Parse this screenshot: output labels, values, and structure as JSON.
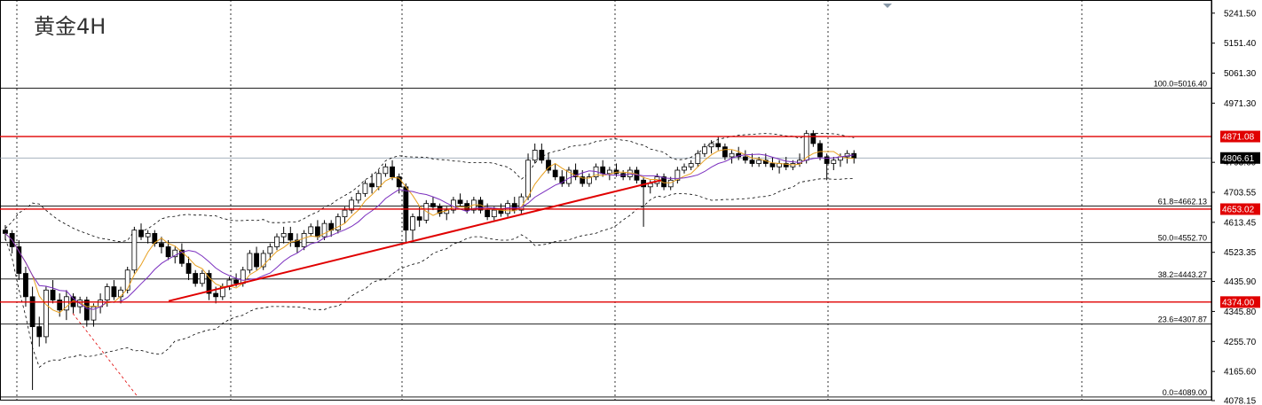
{
  "title": "黄金4H",
  "colors": {
    "background": "#ffffff",
    "bull_candle": "#ffffff",
    "bear_candle": "#000000",
    "candle_outline": "#000000",
    "grid": "#000000",
    "level_line": "#e00000",
    "trendline": "#e00000",
    "ma_fast": "#e8a020",
    "ma_slow": "#7b2fbf",
    "bands": "#000000",
    "price_tag_bg": "#000000",
    "price_tag_text": "#ffffff"
  },
  "chart_data": {
    "type": "candlestick",
    "instrument": "黄金",
    "timeframe": "4H",
    "ylim": [
      4078.15,
      5281.0
    ],
    "y_ticks": [
      "5241.50",
      "5151.40",
      "5061.30",
      "4971.30",
      "4793.60",
      "4703.55",
      "4613.45",
      "4523.35",
      "4435.90",
      "4345.80",
      "4255.70",
      "4165.60",
      "4078.15"
    ],
    "current_price": "4806.61",
    "red_levels": [
      {
        "value": 4871.08,
        "label": "4871.08"
      },
      {
        "value": 4653.02,
        "label": "4653.02"
      },
      {
        "value": 4374.0,
        "label": "4374.00"
      }
    ],
    "fibonacci": [
      {
        "value": 5016.4,
        "label": "100.0=5016.40"
      },
      {
        "value": 4662.13,
        "label": "61.8=4662.13"
      },
      {
        "value": 4552.7,
        "label": "50.0=4552.70"
      },
      {
        "value": 4443.27,
        "label": "38.2=4443.27"
      },
      {
        "value": 4307.87,
        "label": "23.6=4307.87"
      },
      {
        "value": 4089.0,
        "label": "0.0=4089.00"
      }
    ],
    "candles": [
      [
        4590,
        4605,
        4560,
        4580
      ],
      [
        4580,
        4590,
        4520,
        4540
      ],
      [
        4540,
        4560,
        4440,
        4460
      ],
      [
        4460,
        4480,
        4360,
        4390
      ],
      [
        4390,
        4420,
        4110,
        4300
      ],
      [
        4300,
        4330,
        4240,
        4270
      ],
      [
        4270,
        4420,
        4250,
        4410
      ],
      [
        4410,
        4440,
        4370,
        4380
      ],
      [
        4380,
        4400,
        4330,
        4350
      ],
      [
        4350,
        4410,
        4320,
        4390
      ],
      [
        4390,
        4400,
        4340,
        4360
      ],
      [
        4360,
        4390,
        4340,
        4380
      ],
      [
        4380,
        4390,
        4300,
        4320
      ],
      [
        4320,
        4370,
        4300,
        4360
      ],
      [
        4360,
        4400,
        4340,
        4380
      ],
      [
        4380,
        4430,
        4360,
        4420
      ],
      [
        4420,
        4440,
        4380,
        4390
      ],
      [
        4390,
        4420,
        4370,
        4410
      ],
      [
        4410,
        4480,
        4400,
        4470
      ],
      [
        4470,
        4600,
        4460,
        4590
      ],
      [
        4590,
        4610,
        4560,
        4570
      ],
      [
        4570,
        4590,
        4550,
        4580
      ],
      [
        4580,
        4590,
        4540,
        4550
      ],
      [
        4550,
        4570,
        4520,
        4540
      ],
      [
        4540,
        4560,
        4500,
        4510
      ],
      [
        4510,
        4540,
        4490,
        4530
      ],
      [
        4530,
        4550,
        4480,
        4490
      ],
      [
        4490,
        4510,
        4440,
        4460
      ],
      [
        4460,
        4470,
        4420,
        4430
      ],
      [
        4430,
        4470,
        4420,
        4460
      ],
      [
        4460,
        4470,
        4380,
        4400
      ],
      [
        4400,
        4420,
        4370,
        4390
      ],
      [
        4390,
        4430,
        4380,
        4420
      ],
      [
        4420,
        4450,
        4410,
        4440
      ],
      [
        4440,
        4460,
        4420,
        4430
      ],
      [
        4430,
        4480,
        4420,
        4470
      ],
      [
        4470,
        4530,
        4460,
        4520
      ],
      [
        4520,
        4540,
        4470,
        4480
      ],
      [
        4480,
        4530,
        4470,
        4520
      ],
      [
        4520,
        4550,
        4500,
        4540
      ],
      [
        4540,
        4580,
        4530,
        4570
      ],
      [
        4570,
        4600,
        4550,
        4580
      ],
      [
        4580,
        4600,
        4540,
        4560
      ],
      [
        4560,
        4580,
        4520,
        4540
      ],
      [
        4540,
        4590,
        4530,
        4580
      ],
      [
        4580,
        4610,
        4570,
        4600
      ],
      [
        4600,
        4620,
        4560,
        4570
      ],
      [
        4570,
        4620,
        4560,
        4610
      ],
      [
        4610,
        4620,
        4570,
        4590
      ],
      [
        4590,
        4640,
        4580,
        4630
      ],
      [
        4630,
        4660,
        4610,
        4650
      ],
      [
        4650,
        4690,
        4640,
        4680
      ],
      [
        4680,
        4710,
        4670,
        4700
      ],
      [
        4700,
        4740,
        4690,
        4730
      ],
      [
        4730,
        4760,
        4700,
        4720
      ],
      [
        4720,
        4770,
        4710,
        4760
      ],
      [
        4760,
        4790,
        4750,
        4780
      ],
      [
        4780,
        4800,
        4740,
        4750
      ],
      [
        4750,
        4760,
        4700,
        4720
      ],
      [
        4720,
        4730,
        4550,
        4590
      ],
      [
        4590,
        4640,
        4560,
        4630
      ],
      [
        4630,
        4660,
        4600,
        4620
      ],
      [
        4620,
        4680,
        4610,
        4670
      ],
      [
        4670,
        4690,
        4650,
        4660
      ],
      [
        4660,
        4670,
        4630,
        4640
      ],
      [
        4640,
        4660,
        4620,
        4650
      ],
      [
        4650,
        4690,
        4640,
        4680
      ],
      [
        4680,
        4700,
        4660,
        4670
      ],
      [
        4670,
        4680,
        4640,
        4650
      ],
      [
        4650,
        4690,
        4640,
        4680
      ],
      [
        4680,
        4690,
        4640,
        4650
      ],
      [
        4650,
        4670,
        4620,
        4630
      ],
      [
        4630,
        4660,
        4620,
        4650
      ],
      [
        4650,
        4670,
        4630,
        4640
      ],
      [
        4640,
        4680,
        4630,
        4670
      ],
      [
        4670,
        4690,
        4640,
        4650
      ],
      [
        4650,
        4700,
        4640,
        4690
      ],
      [
        4690,
        4820,
        4680,
        4800
      ],
      [
        4800,
        4850,
        4790,
        4830
      ],
      [
        4830,
        4850,
        4790,
        4800
      ],
      [
        4800,
        4820,
        4760,
        4770
      ],
      [
        4770,
        4790,
        4740,
        4750
      ],
      [
        4750,
        4770,
        4720,
        4730
      ],
      [
        4730,
        4780,
        4720,
        4770
      ],
      [
        4770,
        4790,
        4740,
        4750
      ],
      [
        4750,
        4770,
        4720,
        4730
      ],
      [
        4730,
        4760,
        4720,
        4750
      ],
      [
        4750,
        4790,
        4740,
        4780
      ],
      [
        4780,
        4800,
        4750,
        4760
      ],
      [
        4760,
        4780,
        4740,
        4770
      ],
      [
        4770,
        4790,
        4750,
        4760
      ],
      [
        4760,
        4770,
        4740,
        4750
      ],
      [
        4750,
        4780,
        4740,
        4770
      ],
      [
        4770,
        4780,
        4730,
        4740
      ],
      [
        4740,
        4750,
        4600,
        4720
      ],
      [
        4720,
        4740,
        4700,
        4730
      ],
      [
        4730,
        4760,
        4720,
        4750
      ],
      [
        4750,
        4760,
        4710,
        4720
      ],
      [
        4720,
        4750,
        4710,
        4740
      ],
      [
        4740,
        4780,
        4730,
        4770
      ],
      [
        4770,
        4790,
        4760,
        4780
      ],
      [
        4780,
        4800,
        4770,
        4790
      ],
      [
        4790,
        4830,
        4780,
        4820
      ],
      [
        4820,
        4850,
        4810,
        4840
      ],
      [
        4840,
        4860,
        4820,
        4850
      ],
      [
        4850,
        4870,
        4830,
        4840
      ],
      [
        4840,
        4850,
        4800,
        4810
      ],
      [
        4810,
        4830,
        4790,
        4820
      ],
      [
        4820,
        4840,
        4800,
        4810
      ],
      [
        4810,
        4830,
        4790,
        4800
      ],
      [
        4800,
        4820,
        4780,
        4790
      ],
      [
        4790,
        4810,
        4780,
        4800
      ],
      [
        4800,
        4820,
        4780,
        4790
      ],
      [
        4790,
        4810,
        4770,
        4780
      ],
      [
        4780,
        4800,
        4760,
        4790
      ],
      [
        4790,
        4810,
        4770,
        4780
      ],
      [
        4780,
        4800,
        4770,
        4790
      ],
      [
        4790,
        4820,
        4780,
        4800
      ],
      [
        4800,
        4890,
        4790,
        4880
      ],
      [
        4880,
        4890,
        4840,
        4850
      ],
      [
        4850,
        4860,
        4800,
        4810
      ],
      [
        4810,
        4820,
        4740,
        4790
      ],
      [
        4790,
        4810,
        4770,
        4800
      ],
      [
        4800,
        4820,
        4780,
        4810
      ],
      [
        4810,
        4830,
        4790,
        4820
      ],
      [
        4820,
        4830,
        4790,
        4806.61
      ]
    ]
  }
}
